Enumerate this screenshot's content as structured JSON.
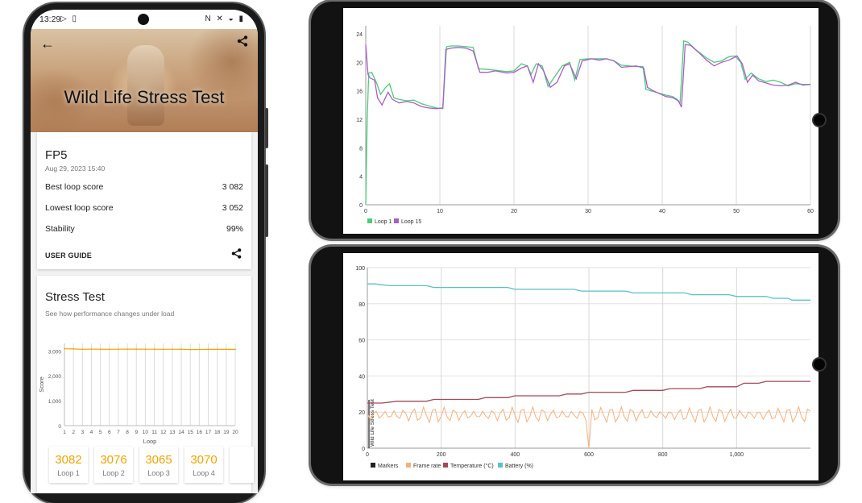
{
  "status_bar": {
    "time": "13:29"
  },
  "header": {
    "title": "Wild Life Stress Test"
  },
  "result_card": {
    "device": "FP5",
    "date": "Aug 29, 2023 15:40",
    "rows": [
      {
        "label": "Best loop score",
        "value": "3 082"
      },
      {
        "label": "Lowest loop score",
        "value": "3 052"
      },
      {
        "label": "Stability",
        "value": "99%"
      }
    ],
    "user_guide": "USER GUIDE"
  },
  "stress_card": {
    "title": "Stress Test",
    "subtitle": "See how performance changes under load",
    "loops": [
      {
        "score": "3082",
        "label": "Loop 1"
      },
      {
        "score": "3076",
        "label": "Loop 2"
      },
      {
        "score": "3065",
        "label": "Loop 3"
      },
      {
        "score": "3070",
        "label": "Loop 4"
      }
    ]
  },
  "colors": {
    "accent": "#f0a500",
    "loop1": "#4ccc78",
    "loop15": "#a85ec8",
    "markers": "#222222",
    "frame_rate": "#f5b07a",
    "temperature": "#a04a5c",
    "battery": "#5bbfc8"
  },
  "chart_data": [
    {
      "type": "line",
      "title": "",
      "xlabel": "Loop",
      "ylabel": "Score",
      "x": [
        1,
        2,
        3,
        4,
        5,
        6,
        7,
        8,
        9,
        10,
        11,
        12,
        13,
        14,
        15,
        16,
        17,
        18,
        19,
        20
      ],
      "series": [
        {
          "name": "",
          "values": [
            3082,
            3076,
            3065,
            3070,
            3068,
            3064,
            3066,
            3070,
            3069,
            3066,
            3067,
            3065,
            3064,
            3066,
            3052,
            3058,
            3061,
            3060,
            3062,
            3060
          ]
        }
      ],
      "x_ticks": [
        "1",
        "2",
        "3",
        "4",
        "5",
        "6",
        "7",
        "8",
        "9",
        "10",
        "11",
        "12",
        "13",
        "14",
        "15",
        "16",
        "17",
        "18",
        "19",
        "20"
      ],
      "y_ticks": [
        "0",
        "1,000",
        "2,000",
        "3,000"
      ],
      "ylim": [
        0,
        3300
      ]
    },
    {
      "type": "line",
      "title": "",
      "xlim": [
        0,
        60
      ],
      "ylim": [
        0,
        24
      ],
      "x_ticks": [
        "0",
        "10",
        "20",
        "30",
        "40",
        "50",
        "60"
      ],
      "y_ticks": [
        "0",
        "4",
        "8",
        "12",
        "16",
        "20",
        "24"
      ],
      "grid": "vertical",
      "legend": "bottom-left",
      "series": [
        {
          "name": "Loop 1",
          "points": [
            [
              0,
              0
            ],
            [
              0.2,
              12
            ],
            [
              0.4,
              18.5
            ],
            [
              0.8,
              18.6
            ],
            [
              1.5,
              17
            ],
            [
              2,
              15.5
            ],
            [
              2.7,
              16.5
            ],
            [
              3.2,
              17
            ],
            [
              3.8,
              15
            ],
            [
              4.5,
              14.8
            ],
            [
              5.5,
              14.6
            ],
            [
              6.5,
              14.7
            ],
            [
              7.5,
              14.2
            ],
            [
              8.5,
              13.9
            ],
            [
              9.5,
              13.6
            ],
            [
              10.4,
              13.5
            ],
            [
              10.9,
              22.2
            ],
            [
              11.5,
              22.3
            ],
            [
              12.5,
              22.3
            ],
            [
              13.5,
              22.2
            ],
            [
              14.5,
              22.1
            ],
            [
              15.2,
              19.1
            ],
            [
              16.5,
              19
            ],
            [
              17.5,
              18.9
            ],
            [
              19,
              18.7
            ],
            [
              20,
              18.8
            ],
            [
              21,
              19.8
            ],
            [
              21.8,
              19.5
            ],
            [
              22.3,
              18.3
            ],
            [
              23,
              19.8
            ],
            [
              23.8,
              19.5
            ],
            [
              24.6,
              16.6
            ],
            [
              25.5,
              18
            ],
            [
              26.5,
              19.5
            ],
            [
              27.5,
              20
            ],
            [
              28.2,
              17.5
            ],
            [
              28.9,
              20.4
            ],
            [
              30,
              20.5
            ],
            [
              31.5,
              20.5
            ],
            [
              32.5,
              20.5
            ],
            [
              33.5,
              20.2
            ],
            [
              34.5,
              19.6
            ],
            [
              35.5,
              19.5
            ],
            [
              36.5,
              19.4
            ],
            [
              37.4,
              19.4
            ],
            [
              37.8,
              16.2
            ],
            [
              38.5,
              16
            ],
            [
              40.5,
              15.4
            ],
            [
              41.4,
              15.2
            ],
            [
              42,
              14.8
            ],
            [
              42.4,
              14.2
            ],
            [
              42.9,
              23
            ],
            [
              43.5,
              22.8
            ],
            [
              44.5,
              21.8
            ],
            [
              46,
              20.6
            ],
            [
              47,
              20
            ],
            [
              48,
              20.2
            ],
            [
              49,
              20.8
            ],
            [
              49.8,
              20.9
            ],
            [
              50.6,
              20
            ],
            [
              51.2,
              17.6
            ],
            [
              52,
              18.5
            ],
            [
              53,
              17.7
            ],
            [
              54,
              17.3
            ],
            [
              55,
              17.5
            ],
            [
              56,
              17.2
            ],
            [
              57,
              16.7
            ],
            [
              58,
              17
            ],
            [
              59,
              16.9
            ],
            [
              60,
              16.9
            ]
          ]
        },
        {
          "name": "Loop 15",
          "points": [
            [
              0,
              22.5
            ],
            [
              0.3,
              18.3
            ],
            [
              0.6,
              17.8
            ],
            [
              1.2,
              17.5
            ],
            [
              1.6,
              15
            ],
            [
              2.2,
              14
            ],
            [
              3,
              15.8
            ],
            [
              3.6,
              14.8
            ],
            [
              4.5,
              14.3
            ],
            [
              5.5,
              14.5
            ],
            [
              6.5,
              14.3
            ],
            [
              7.5,
              13.8
            ],
            [
              8.5,
              13.6
            ],
            [
              9.5,
              13.5
            ],
            [
              10.4,
              13.6
            ],
            [
              10.8,
              21.8
            ],
            [
              11.5,
              22
            ],
            [
              12.5,
              22.1
            ],
            [
              13.5,
              22
            ],
            [
              14.5,
              21.6
            ],
            [
              15.4,
              18.6
            ],
            [
              16.5,
              18.6
            ],
            [
              17.5,
              18.8
            ],
            [
              19,
              18.5
            ],
            [
              20,
              18.6
            ],
            [
              21,
              19.2
            ],
            [
              21.8,
              19.5
            ],
            [
              22.6,
              17.2
            ],
            [
              23.3,
              19.8
            ],
            [
              24,
              18.8
            ],
            [
              24.9,
              16.5
            ],
            [
              25.8,
              17.2
            ],
            [
              26.8,
              19.5
            ],
            [
              27.5,
              19.8
            ],
            [
              28.4,
              17.7
            ],
            [
              29.2,
              20.2
            ],
            [
              30.5,
              20.5
            ],
            [
              31.5,
              20.3
            ],
            [
              32.5,
              20.5
            ],
            [
              33.5,
              20.2
            ],
            [
              34.5,
              19.3
            ],
            [
              35.5,
              19.4
            ],
            [
              36.5,
              19.5
            ],
            [
              37.5,
              19.2
            ],
            [
              38,
              16.5
            ],
            [
              38.8,
              16
            ],
            [
              40.5,
              15.2
            ],
            [
              41.5,
              15
            ],
            [
              42.2,
              14.6
            ],
            [
              42.6,
              13.7
            ],
            [
              43.1,
              22.5
            ],
            [
              43.8,
              22.4
            ],
            [
              45,
              21.3
            ],
            [
              46,
              20.3
            ],
            [
              47,
              19.5
            ],
            [
              48,
              20
            ],
            [
              49,
              20.3
            ],
            [
              50.1,
              20.9
            ],
            [
              50.8,
              19.8
            ],
            [
              51.5,
              17.2
            ],
            [
              52.2,
              18.2
            ],
            [
              53,
              17.4
            ],
            [
              54,
              17.1
            ],
            [
              55,
              16.8
            ],
            [
              56,
              16.7
            ],
            [
              57,
              16.8
            ],
            [
              58,
              17.2
            ],
            [
              59,
              16.8
            ],
            [
              60,
              16.9
            ]
          ]
        }
      ]
    },
    {
      "type": "line",
      "title": "",
      "xlim": [
        0,
        1200
      ],
      "ylim": [
        0,
        100
      ],
      "x_ticks": [
        "0",
        "200",
        "400",
        "600",
        "800",
        "1,000"
      ],
      "y_ticks": [
        "0",
        "20",
        "40",
        "60",
        "80",
        "100"
      ],
      "grid": "both",
      "legend": "bottom-left",
      "y_axis_note": "Wild Life Stress Test",
      "series": [
        {
          "name": "Markers",
          "points": []
        },
        {
          "name": "Frame rate",
          "note": "oscillates ~15-22, dip to 0 at x~600"
        },
        {
          "name": "Temperature (°C)",
          "points": [
            [
              0,
              25
            ],
            [
              40,
              25
            ],
            [
              80,
              26
            ],
            [
              160,
              26
            ],
            [
              180,
              27
            ],
            [
              300,
              27
            ],
            [
              320,
              28
            ],
            [
              380,
              28
            ],
            [
              400,
              29
            ],
            [
              520,
              29
            ],
            [
              540,
              30
            ],
            [
              580,
              30
            ],
            [
              600,
              31
            ],
            [
              700,
              31
            ],
            [
              720,
              32
            ],
            [
              800,
              32
            ],
            [
              820,
              33
            ],
            [
              900,
              33
            ],
            [
              920,
              34
            ],
            [
              1000,
              34
            ],
            [
              1020,
              36
            ],
            [
              1060,
              36
            ],
            [
              1080,
              37
            ],
            [
              1200,
              37
            ]
          ]
        },
        {
          "name": "Battery (%)",
          "points": [
            [
              0,
              91
            ],
            [
              20,
              91
            ],
            [
              60,
              90
            ],
            [
              160,
              90
            ],
            [
              180,
              89
            ],
            [
              380,
              89
            ],
            [
              400,
              88
            ],
            [
              560,
              88
            ],
            [
              580,
              87
            ],
            [
              700,
              87
            ],
            [
              720,
              86
            ],
            [
              860,
              86
            ],
            [
              880,
              85
            ],
            [
              980,
              85
            ],
            [
              1000,
              84
            ],
            [
              1080,
              84
            ],
            [
              1100,
              83
            ],
            [
              1140,
              83
            ],
            [
              1150,
              82
            ],
            [
              1200,
              82
            ]
          ]
        }
      ]
    }
  ]
}
